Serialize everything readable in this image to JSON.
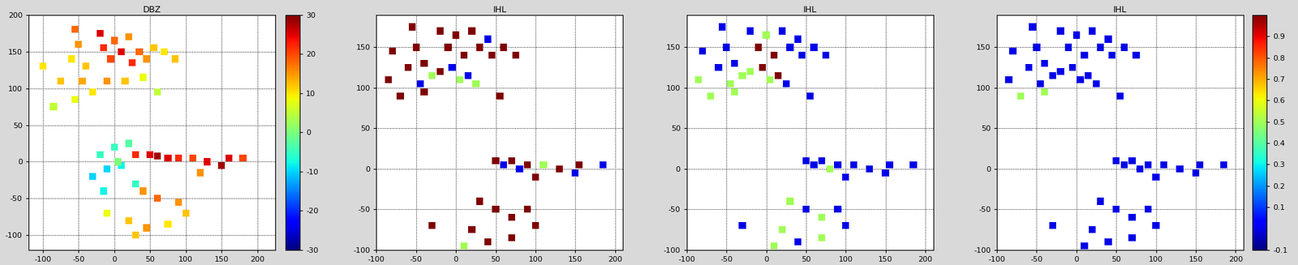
{
  "chart_data": [
    {
      "type": "scatter",
      "title": "DBZ",
      "grid": true,
      "marker": "s",
      "xlim": [
        -120,
        225
      ],
      "ylim": [
        -120,
        200
      ],
      "xticks": [
        -100,
        -50,
        0,
        50,
        100,
        150,
        200
      ],
      "yticks": [
        -100,
        -50,
        0,
        50,
        100,
        150,
        200
      ],
      "color_range": [
        -30,
        30
      ],
      "colorbar_ticks": [
        -30,
        -20,
        -10,
        0,
        10,
        20,
        30
      ],
      "x": [
        -55,
        -50,
        -40,
        -20,
        -15,
        -5,
        0,
        10,
        20,
        25,
        35,
        45,
        55,
        70,
        85,
        -60,
        -75,
        -45,
        -30,
        -85,
        -100,
        -10,
        15,
        40,
        60,
        -55,
        -20,
        -10,
        0,
        10,
        -30,
        20,
        5,
        -15,
        30,
        30,
        50,
        60,
        75,
        90,
        110,
        130,
        150,
        160,
        180,
        120,
        40,
        60,
        90,
        20,
        45,
        75,
        100,
        -10,
        30
      ],
      "y": [
        180,
        160,
        130,
        175,
        155,
        140,
        165,
        150,
        170,
        135,
        150,
        140,
        155,
        150,
        140,
        140,
        110,
        110,
        95,
        75,
        130,
        110,
        110,
        115,
        95,
        85,
        10,
        -10,
        20,
        -5,
        -20,
        25,
        0,
        -40,
        -30,
        10,
        10,
        8,
        5,
        5,
        5,
        0,
        -5,
        5,
        5,
        -15,
        -40,
        -50,
        -55,
        -80,
        -90,
        -85,
        -70,
        -70,
        -100
      ],
      "values": [
        18,
        15,
        12,
        25,
        22,
        20,
        18,
        25,
        15,
        22,
        18,
        15,
        12,
        10,
        12,
        10,
        12,
        14,
        10,
        5,
        10,
        15,
        12,
        8,
        5,
        8,
        -5,
        -10,
        -5,
        -8,
        -10,
        -3,
        0,
        -8,
        -5,
        22,
        25,
        28,
        25,
        22,
        20,
        25,
        28,
        25,
        20,
        15,
        15,
        18,
        15,
        12,
        15,
        10,
        12,
        8,
        12
      ]
    },
    {
      "type": "scatter",
      "title": "IHL",
      "grid": true,
      "marker": "s",
      "xlim": [
        -100,
        210
      ],
      "ylim": [
        -100,
        190
      ],
      "xticks": [
        -100,
        -50,
        0,
        50,
        100,
        150,
        200
      ],
      "yticks": [
        -100,
        -50,
        0,
        50,
        100,
        150
      ],
      "color_range": [
        -0.1,
        1.0
      ],
      "x": [
        -55,
        -50,
        -40,
        -20,
        -10,
        0,
        10,
        20,
        30,
        45,
        60,
        75,
        -80,
        -85,
        -70,
        -60,
        -40,
        -20,
        5,
        15,
        -45,
        -30,
        25,
        -5,
        40,
        55,
        50,
        60,
        70,
        80,
        90,
        110,
        130,
        150,
        155,
        185,
        100,
        30,
        50,
        70,
        90,
        20,
        40,
        70,
        -30,
        10,
        100
      ],
      "y": [
        175,
        150,
        130,
        170,
        150,
        165,
        140,
        170,
        150,
        140,
        150,
        140,
        145,
        110,
        90,
        125,
        95,
        120,
        110,
        115,
        105,
        115,
        105,
        125,
        160,
        90,
        10,
        5,
        10,
        0,
        5,
        5,
        0,
        -5,
        5,
        5,
        -10,
        -40,
        -50,
        -60,
        -50,
        -75,
        -90,
        -85,
        -70,
        -95,
        -70
      ],
      "values": [
        1,
        1,
        1,
        1,
        1,
        1,
        1,
        1,
        1,
        1,
        1,
        1,
        1,
        1,
        1,
        1,
        1,
        1,
        0.5,
        0,
        0,
        0.5,
        0.5,
        0,
        0,
        1,
        1,
        0,
        1,
        0,
        1,
        0.5,
        1,
        0,
        1,
        0,
        1,
        1,
        1,
        1,
        1,
        1,
        1,
        1,
        1,
        0.5,
        1
      ]
    },
    {
      "type": "scatter",
      "title": "IHL",
      "grid": true,
      "marker": "s",
      "xlim": [
        -100,
        210
      ],
      "ylim": [
        -100,
        190
      ],
      "xticks": [
        -100,
        -50,
        0,
        50,
        100,
        150,
        200
      ],
      "yticks": [
        -100,
        -50,
        0,
        50,
        100,
        150
      ],
      "color_range": [
        -0.1,
        1.0
      ],
      "x": [
        -55,
        -50,
        -40,
        -20,
        -10,
        0,
        10,
        20,
        30,
        45,
        60,
        75,
        -80,
        -85,
        -70,
        -60,
        -40,
        -20,
        5,
        15,
        -45,
        -30,
        25,
        -5,
        40,
        55,
        50,
        60,
        70,
        80,
        90,
        110,
        130,
        150,
        155,
        185,
        100,
        30,
        50,
        70,
        90,
        20,
        40,
        70,
        -30,
        10,
        100
      ],
      "y": [
        175,
        150,
        130,
        170,
        150,
        165,
        140,
        170,
        150,
        140,
        150,
        140,
        145,
        110,
        90,
        125,
        95,
        120,
        110,
        115,
        105,
        115,
        105,
        125,
        160,
        90,
        10,
        5,
        10,
        0,
        5,
        5,
        0,
        -5,
        5,
        5,
        -10,
        -40,
        -50,
        -60,
        -50,
        -75,
        -90,
        -85,
        -70,
        -95,
        -70
      ],
      "values": [
        0,
        0,
        0,
        0,
        1,
        0.5,
        1,
        0,
        0,
        0,
        0,
        0,
        0,
        0.5,
        0.5,
        0,
        0.5,
        0.5,
        0.5,
        1,
        0.5,
        0.5,
        0,
        1,
        0,
        0,
        0,
        0,
        0,
        0.5,
        0,
        0,
        0,
        0,
        0,
        0,
        0,
        0.5,
        0,
        0.5,
        0,
        0.5,
        0,
        0.5,
        0,
        0.5,
        0
      ]
    },
    {
      "type": "scatter",
      "title": "IHL",
      "grid": true,
      "marker": "s",
      "xlim": [
        -100,
        210
      ],
      "ylim": [
        -100,
        190
      ],
      "xticks": [
        -100,
        -50,
        0,
        50,
        100,
        150,
        200
      ],
      "yticks": [
        -100,
        -50,
        0,
        50,
        100,
        150
      ],
      "color_range": [
        -0.1,
        1.0
      ],
      "colorbar_ticks": [
        -0.1,
        0.1,
        0.2,
        0.3,
        0.4,
        0.5,
        0.6,
        0.7,
        0.8,
        0.9
      ],
      "x": [
        -55,
        -50,
        -40,
        -20,
        -10,
        0,
        10,
        20,
        30,
        45,
        60,
        75,
        -80,
        -85,
        -70,
        -60,
        -40,
        -20,
        5,
        15,
        -45,
        -30,
        25,
        -5,
        40,
        55,
        50,
        60,
        70,
        80,
        90,
        110,
        130,
        150,
        155,
        185,
        100,
        30,
        50,
        70,
        90,
        20,
        40,
        70,
        -30,
        10,
        100
      ],
      "y": [
        175,
        150,
        130,
        170,
        150,
        165,
        140,
        170,
        150,
        140,
        150,
        140,
        145,
        110,
        90,
        125,
        95,
        120,
        110,
        115,
        105,
        115,
        105,
        125,
        160,
        90,
        10,
        5,
        10,
        0,
        5,
        5,
        0,
        -5,
        5,
        5,
        -10,
        -40,
        -50,
        -60,
        -50,
        -75,
        -90,
        -85,
        -70,
        -95,
        -70
      ],
      "values": [
        0,
        0,
        0,
        0,
        0,
        0,
        0,
        0,
        0,
        0,
        0,
        0,
        0,
        0,
        0.5,
        0,
        0.5,
        0,
        0,
        0,
        0,
        0,
        0,
        0,
        0,
        0,
        0,
        0,
        0,
        0,
        0,
        0,
        0,
        0,
        0,
        0,
        0,
        0,
        0,
        0,
        0,
        0,
        0,
        0,
        0,
        0,
        0
      ]
    }
  ]
}
